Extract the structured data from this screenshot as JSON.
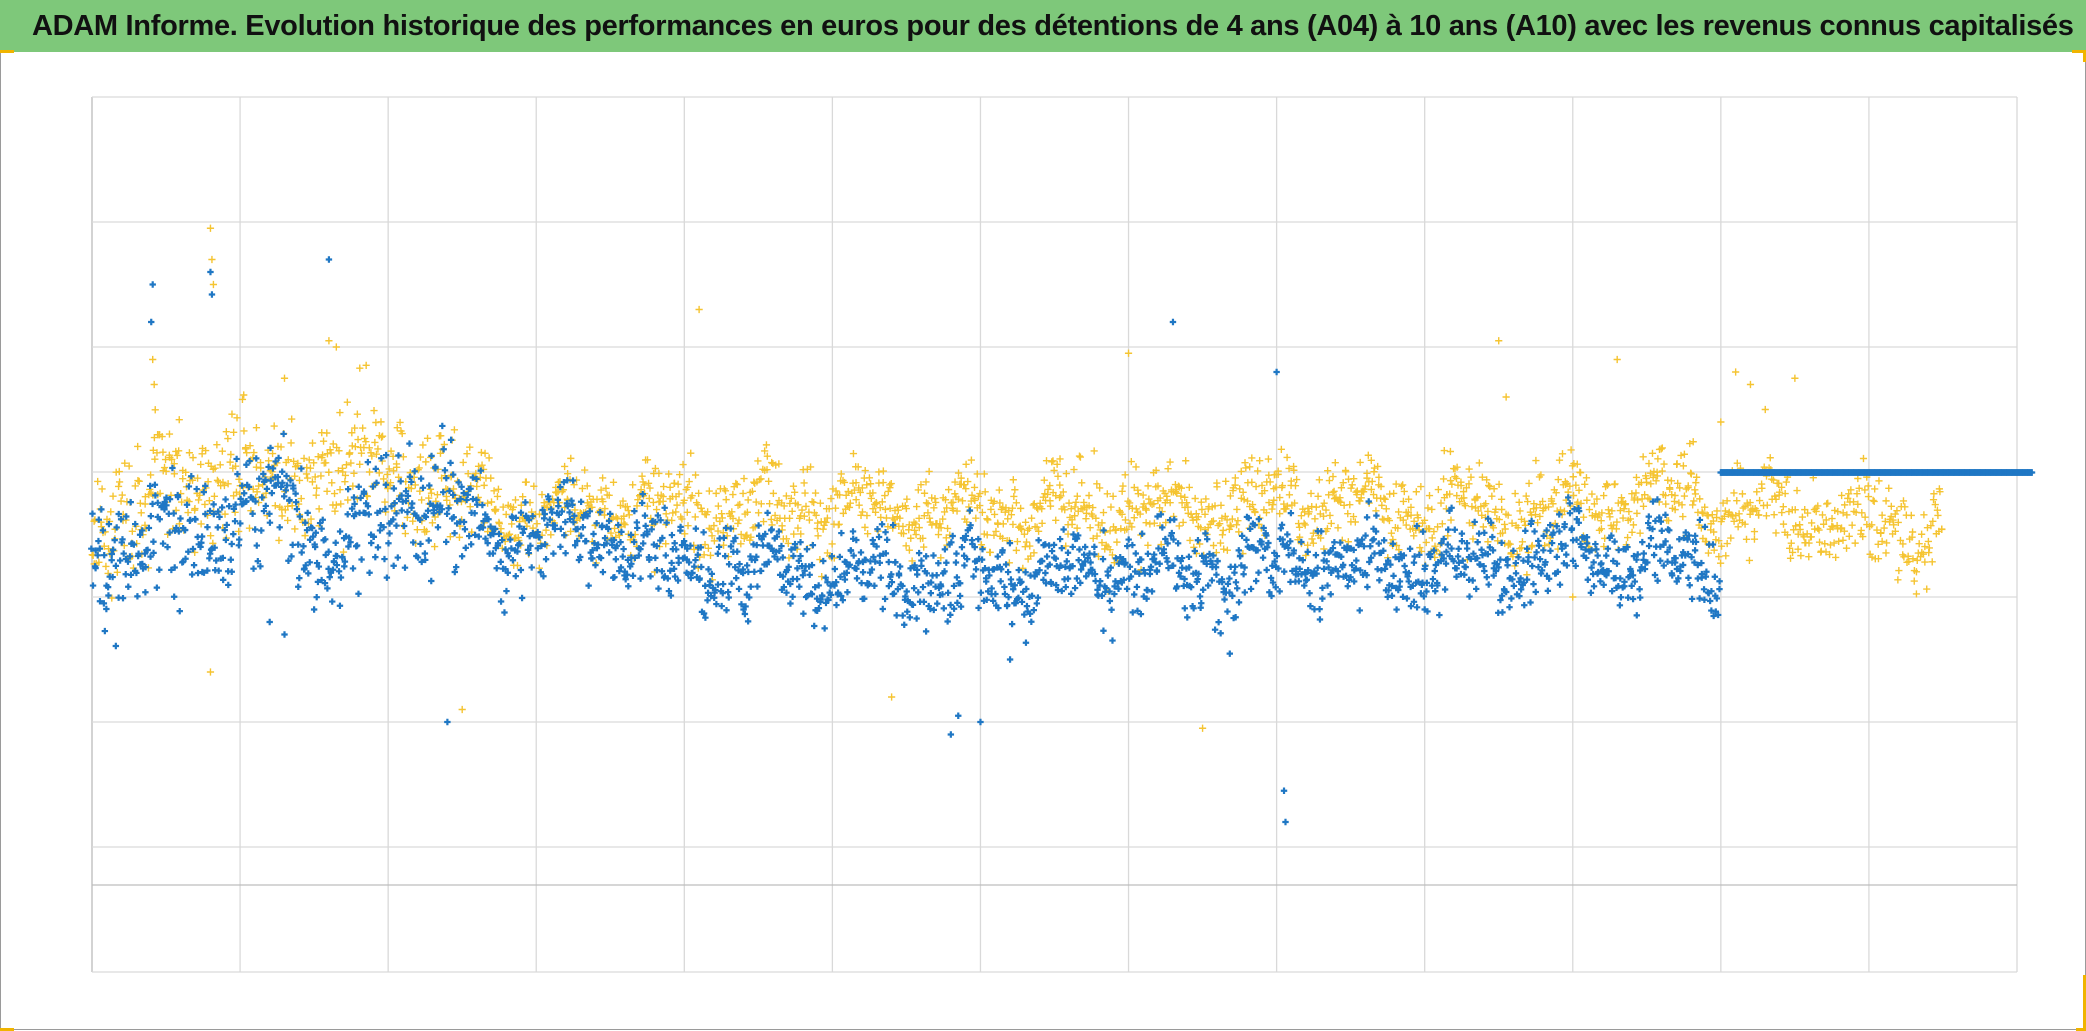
{
  "title": "ADAM Informe. Evolution historique des performances en euros pour des détentions de 4 ans (A04) à 10 ans (A10) avec les revenus connus capitalisés",
  "colors": {
    "title_bar": "#7ec87a",
    "series_a04": "#1f77c4",
    "series_a10": "#f5c431",
    "grid": "#d9d9d9",
    "corner_marks": "#f0b400"
  },
  "chart_data": {
    "type": "scatter",
    "title": "ADAM Informe. Evolution historique des performances en euros pour des détentions de 4 ans (A04) à 10 ans (A10) avec les revenus connus capitalisés",
    "xlabel": "",
    "ylabel": "",
    "grid": true,
    "legend": "none",
    "marker": "plus",
    "x_gridlines": 13,
    "y_gridlines": [
      0,
      1,
      2,
      3,
      4,
      5,
      6
    ],
    "note": "",
    "series": [
      {
        "key": "a04",
        "color": "#1f77c4",
        "x_range": [
          0,
          13
        ],
        "baseline": [
          [
            0.0,
            3.7
          ],
          [
            0.3,
            3.55
          ],
          [
            0.6,
            3.6
          ],
          [
            1.0,
            3.35
          ],
          [
            1.3,
            3.2
          ],
          [
            1.6,
            3.7
          ],
          [
            2.0,
            3.35
          ],
          [
            2.3,
            3.15
          ],
          [
            2.7,
            3.55
          ],
          [
            3.0,
            3.45
          ],
          [
            3.5,
            3.55
          ],
          [
            4.0,
            3.75
          ],
          [
            4.5,
            3.8
          ],
          [
            5.0,
            3.8
          ],
          [
            5.5,
            3.85
          ],
          [
            6.0,
            3.85
          ],
          [
            6.5,
            3.85
          ],
          [
            7.0,
            3.75
          ],
          [
            7.5,
            3.85
          ],
          [
            8.0,
            3.75
          ],
          [
            8.5,
            3.7
          ],
          [
            9.0,
            3.75
          ],
          [
            9.5,
            3.75
          ],
          [
            10.0,
            3.65
          ],
          [
            10.5,
            3.7
          ],
          [
            11.0,
            3.75
          ]
        ],
        "flat_segment": {
          "x_from": 11.0,
          "x_to": 13.1,
          "y": 3.0
        },
        "outliers": [
          [
            0.4,
            1.8
          ],
          [
            0.41,
            1.5
          ],
          [
            0.8,
            1.4
          ],
          [
            0.81,
            1.58
          ],
          [
            1.6,
            1.3
          ],
          [
            2.4,
            5.0
          ],
          [
            2.45,
            3.8
          ],
          [
            4.4,
            4.1
          ],
          [
            5.8,
            5.1
          ],
          [
            5.85,
            4.95
          ],
          [
            6.0,
            5.0
          ],
          [
            7.3,
            1.8
          ],
          [
            8.0,
            2.2
          ],
          [
            8.05,
            5.55
          ],
          [
            8.06,
            5.8
          ],
          [
            9.0,
            4.1
          ],
          [
            1.2,
            4.2
          ],
          [
            1.3,
            4.3
          ],
          [
            1.5,
            4.1
          ],
          [
            6.2,
            4.5
          ]
        ]
      },
      {
        "key": "a10",
        "color": "#f5c431",
        "x_range": [
          0,
          12.5
        ],
        "baseline": [
          [
            0.0,
            3.4
          ],
          [
            0.3,
            3.25
          ],
          [
            0.6,
            3.1
          ],
          [
            1.0,
            3.0
          ],
          [
            1.3,
            3.2
          ],
          [
            1.6,
            2.9
          ],
          [
            2.0,
            3.0
          ],
          [
            2.3,
            3.1
          ],
          [
            2.7,
            3.25
          ],
          [
            3.0,
            3.3
          ],
          [
            3.5,
            3.3
          ],
          [
            4.0,
            3.3
          ],
          [
            4.5,
            3.3
          ],
          [
            5.0,
            3.3
          ],
          [
            5.5,
            3.3
          ],
          [
            6.0,
            3.35
          ],
          [
            6.5,
            3.3
          ],
          [
            7.0,
            3.3
          ],
          [
            7.5,
            3.3
          ],
          [
            8.0,
            3.3
          ],
          [
            8.5,
            3.2
          ],
          [
            9.0,
            3.3
          ],
          [
            9.5,
            3.3
          ],
          [
            10.0,
            3.35
          ],
          [
            10.5,
            3.15
          ],
          [
            11.0,
            3.3
          ],
          [
            11.5,
            3.35
          ],
          [
            12.0,
            3.45
          ],
          [
            12.5,
            3.45
          ]
        ],
        "outliers": [
          [
            0.41,
            2.1
          ],
          [
            0.42,
            2.3
          ],
          [
            0.8,
            1.05
          ],
          [
            0.81,
            1.3
          ],
          [
            0.82,
            1.5
          ],
          [
            1.3,
            2.25
          ],
          [
            1.6,
            1.95
          ],
          [
            1.65,
            2.0
          ],
          [
            4.1,
            1.7
          ],
          [
            7.0,
            2.05
          ],
          [
            7.5,
            5.05
          ],
          [
            9.5,
            1.95
          ],
          [
            9.55,
            2.4
          ],
          [
            11.0,
            2.6
          ],
          [
            11.5,
            2.25
          ],
          [
            11.1,
            2.2
          ],
          [
            11.2,
            2.3
          ],
          [
            11.3,
            2.5
          ],
          [
            0.8,
            4.6
          ],
          [
            2.5,
            4.9
          ],
          [
            5.4,
            4.8
          ],
          [
            3.8,
            3.8
          ],
          [
            10.0,
            4.0
          ],
          [
            10.3,
            2.1
          ]
        ]
      }
    ]
  }
}
